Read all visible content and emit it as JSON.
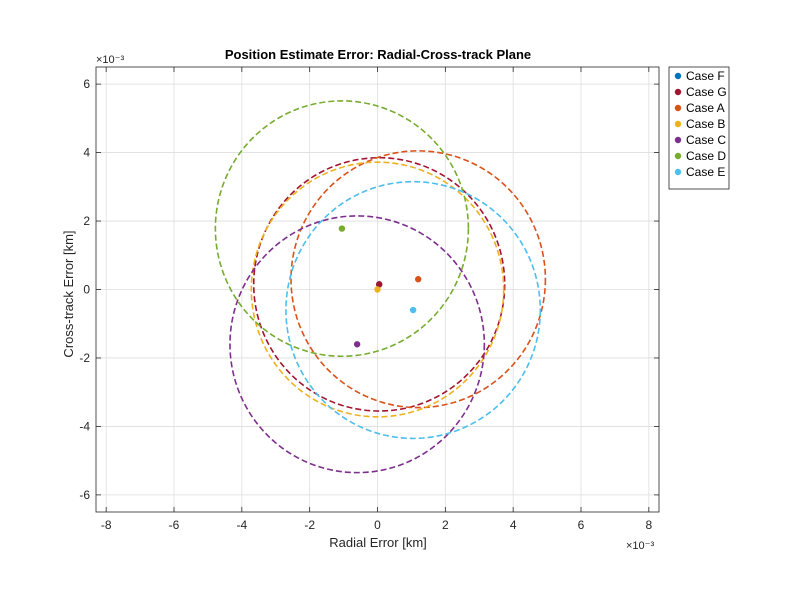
{
  "chart_data": {
    "type": "scatter",
    "title": "Position Estimate Error: Radial-Cross-track Plane",
    "xlabel": "Radial Error [km]",
    "ylabel": "Cross-track Error [km]",
    "x_exponent_label": "×10⁻³",
    "y_exponent_label": "×10⁻³",
    "xlim": [
      -8.3,
      8.3
    ],
    "ylim": [
      -6.5,
      6.5
    ],
    "xticks": [
      -8,
      -6,
      -4,
      -2,
      0,
      2,
      4,
      6,
      8
    ],
    "yticks": [
      -6,
      -4,
      -2,
      0,
      2,
      4,
      6
    ],
    "grid": true,
    "legend_position": "outside-top-right",
    "series": [
      {
        "name": "Case F",
        "color": "#0072BD",
        "center": [
          0.05,
          0.15
        ],
        "radius": null
      },
      {
        "name": "Case G",
        "color": "#A2142F",
        "center": [
          0.05,
          0.15
        ],
        "radius": 3.7
      },
      {
        "name": "Case A",
        "color": "#D95319",
        "center": [
          1.2,
          0.3
        ],
        "radius": 3.75
      },
      {
        "name": "Case B",
        "color": "#EDB120",
        "center": [
          0.0,
          0.0
        ],
        "radius": 3.72
      },
      {
        "name": "Case C",
        "color": "#7E2F8E",
        "center": [
          -0.6,
          -1.6
        ],
        "radius": 3.75
      },
      {
        "name": "Case D",
        "color": "#77AC30",
        "center": [
          -1.05,
          1.78
        ],
        "radius": 3.73
      },
      {
        "name": "Case E",
        "color": "#4DBEEE",
        "center": [
          1.05,
          -0.6
        ],
        "radius": 3.75
      }
    ]
  }
}
